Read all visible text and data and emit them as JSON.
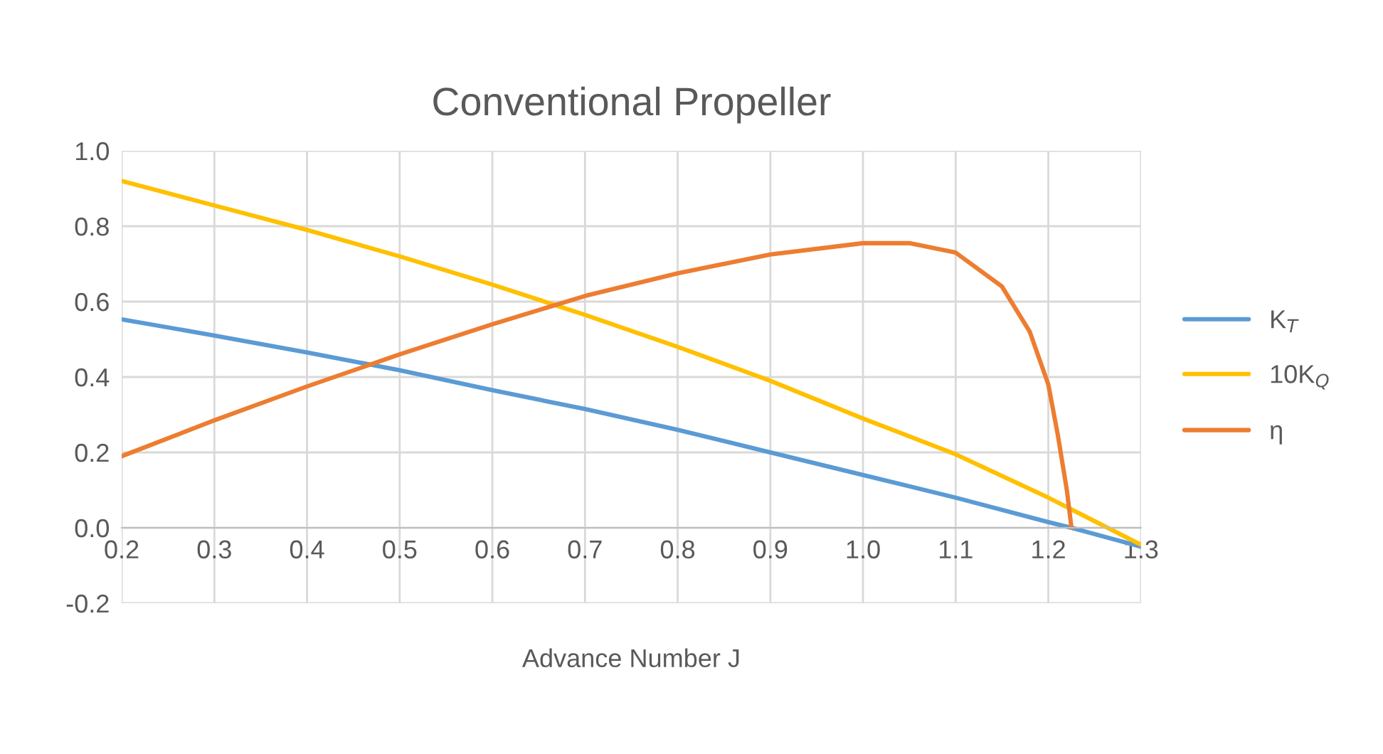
{
  "chart_data": {
    "type": "line",
    "title": "Conventional Propeller",
    "xlabel": "Advance Number J",
    "series": [
      {
        "name": "K$_{T}$",
        "color": "#5b9bd5",
        "x": [
          0.2,
          0.3,
          0.4,
          0.5,
          0.6,
          0.7,
          0.8,
          0.9,
          1.0,
          1.1,
          1.2,
          1.225,
          1.3
        ],
        "values": [
          0.553,
          0.51,
          0.465,
          0.418,
          0.365,
          0.315,
          0.26,
          0.2,
          0.14,
          0.08,
          0.015,
          0.0,
          -0.05
        ]
      },
      {
        "name": "10K$_{Q}$",
        "color": "#ffc000",
        "x": [
          0.2,
          0.3,
          0.4,
          0.5,
          0.6,
          0.7,
          0.8,
          0.9,
          1.0,
          1.1,
          1.2,
          1.3
        ],
        "values": [
          0.92,
          0.855,
          0.79,
          0.72,
          0.645,
          0.565,
          0.48,
          0.39,
          0.29,
          0.195,
          0.08,
          -0.045
        ]
      },
      {
        "name": "η",
        "color": "#ed7d31",
        "x": [
          0.2,
          0.3,
          0.4,
          0.5,
          0.6,
          0.7,
          0.8,
          0.9,
          1.0,
          1.05,
          1.1,
          1.15,
          1.18,
          1.2,
          1.21,
          1.22,
          1.225
        ],
        "values": [
          0.19,
          0.285,
          0.375,
          0.46,
          0.54,
          0.615,
          0.675,
          0.725,
          0.755,
          0.755,
          0.73,
          0.64,
          0.52,
          0.38,
          0.25,
          0.1,
          0.0
        ]
      }
    ],
    "xlim": [
      0.2,
      1.3
    ],
    "ylim": [
      -0.2,
      1.0
    ],
    "xticks": [
      0.2,
      0.3,
      0.4,
      0.5,
      0.6,
      0.7,
      0.8,
      0.9,
      {
        "value": 1.0,
        "label": "1.0"
      },
      1.1,
      1.2,
      1.3
    ],
    "yticks": [
      -0.2,
      {
        "value": 0.0,
        "label": "0.0"
      },
      0.2,
      0.4,
      0.6,
      0.8,
      {
        "value": 1.0,
        "label": "1.0"
      }
    ],
    "grid": true,
    "legend": "right"
  }
}
